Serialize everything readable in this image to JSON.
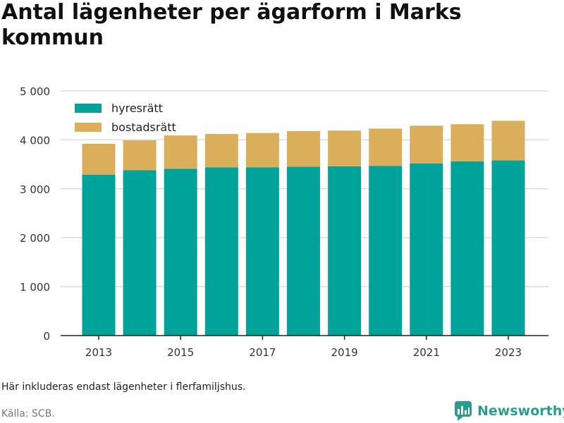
{
  "title": "Antal lägenheter per ägarform i Marks kommun",
  "note": "Här inkluderas endast lägenheter i flerfamiljshus.",
  "source": "Källa: SCB.",
  "brand": "Newsworthy",
  "colors": {
    "hyresratt": "#00a39a",
    "bostadsratt": "#dbae5c",
    "grid": "#dddddd",
    "brand": "#2a9d8f"
  },
  "chart_data": {
    "type": "bar",
    "stacked": true,
    "categories": [
      "2013",
      "2014",
      "2015",
      "2016",
      "2017",
      "2018",
      "2019",
      "2020",
      "2021",
      "2022",
      "2023"
    ],
    "x_tick_labels": [
      "2013",
      "2015",
      "2017",
      "2019",
      "2021",
      "2023"
    ],
    "series": [
      {
        "name": "hyresrätt",
        "color": "#00a39a",
        "values": [
          3290,
          3380,
          3410,
          3440,
          3440,
          3450,
          3460,
          3470,
          3520,
          3560,
          3580
        ]
      },
      {
        "name": "bostadsrätt",
        "color": "#dbae5c",
        "values": [
          630,
          610,
          680,
          680,
          700,
          730,
          730,
          760,
          770,
          760,
          810
        ]
      }
    ],
    "y_ticks": [
      0,
      1000,
      2000,
      3000,
      4000,
      5000
    ],
    "y_tick_labels": [
      "0",
      "1 000",
      "2 000",
      "3 000",
      "4 000",
      "5 000"
    ],
    "ylim": [
      0,
      5000
    ],
    "grid": true,
    "legend_position": "top-left",
    "xlabel": "",
    "ylabel": ""
  }
}
